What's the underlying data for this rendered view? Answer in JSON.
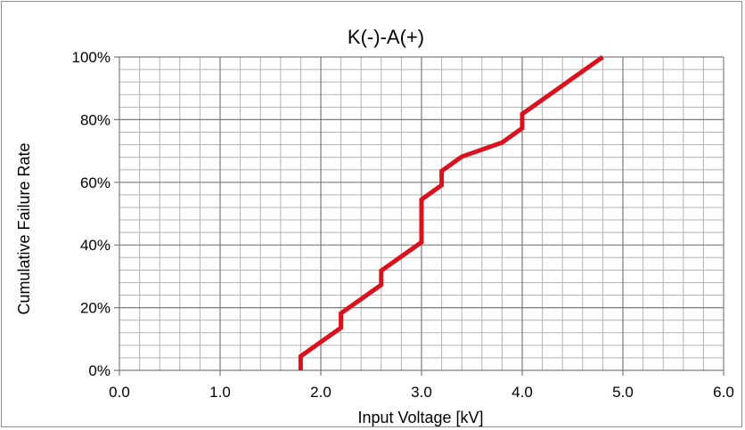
{
  "chart_data": {
    "type": "line",
    "title": "K(-)-A(+)",
    "xlabel": "Input Voltage [kV]",
    "ylabel": "Cumulative Failure Rate",
    "xlim": [
      0,
      6
    ],
    "ylim": [
      0,
      100
    ],
    "x_ticks": [
      "0.0",
      "1.0",
      "2.0",
      "3.0",
      "4.0",
      "5.0",
      "6.0"
    ],
    "y_ticks": [
      "0%",
      "20%",
      "40%",
      "60%",
      "80%",
      "100%"
    ],
    "grid": "major and minor",
    "minor_x_step": 0.2,
    "minor_y_step": 4,
    "legend": "none",
    "series": [
      {
        "color": "#d9121e",
        "x": [
          1.8,
          1.8,
          2.2,
          2.2,
          2.6,
          2.6,
          3.0,
          3.0,
          3.2,
          3.2,
          3.4,
          3.8,
          4.0,
          4.0,
          4.8
        ],
        "y": [
          0,
          4.5,
          13.6,
          18.2,
          27.3,
          31.8,
          40.9,
          54.5,
          59.1,
          63.6,
          68.2,
          72.7,
          77.3,
          81.8,
          100
        ]
      }
    ]
  }
}
